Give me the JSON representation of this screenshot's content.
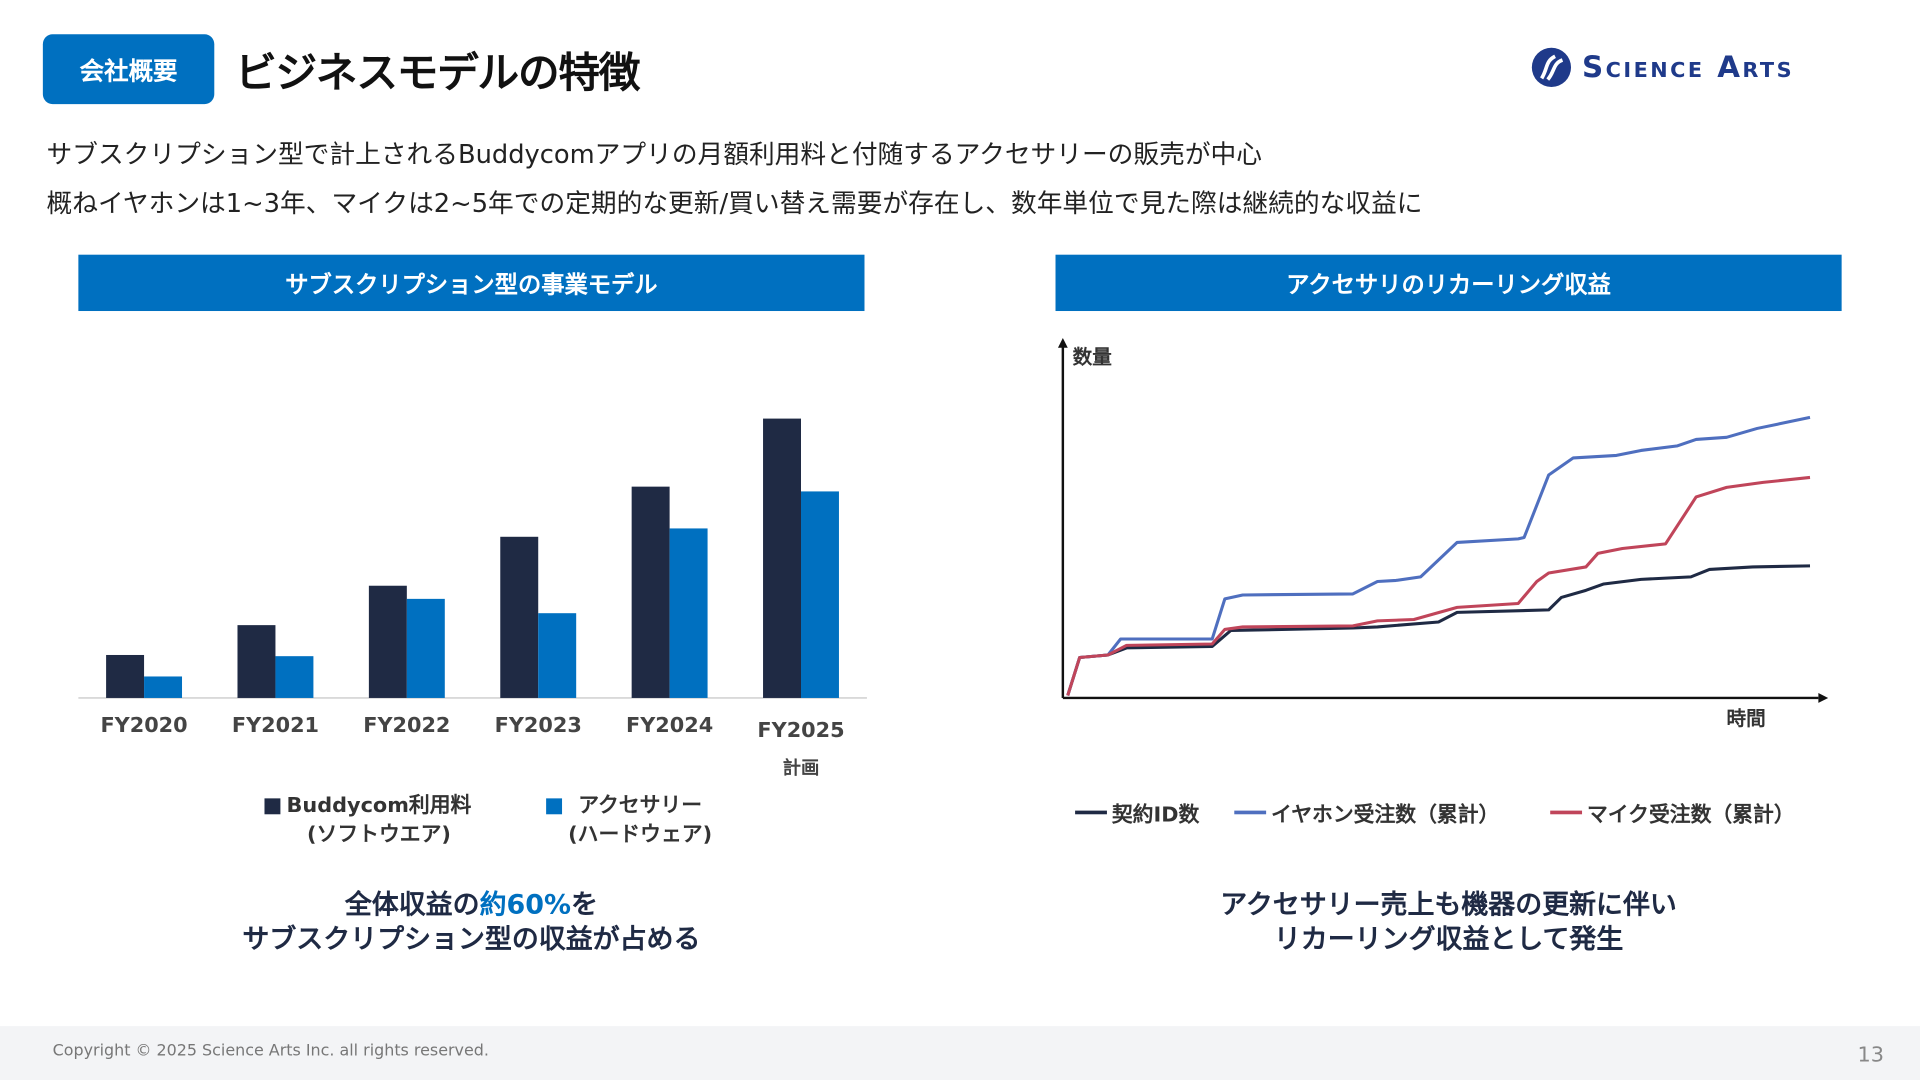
{
  "header": {
    "badge": "会社概要",
    "title": "ビジネスモデルの特徴",
    "logo_text": "Science Arts"
  },
  "lead": [
    "サブスクリプション型で計上されるBuddycomアプリの月額利用料と付随するアクセサリーの販売が中心",
    "概ねイヤホンは1~3年、マイクは2~5年での定期的な更新/買い替え需要が存在し、数年単位で見た際は継続的な収益に"
  ],
  "left_panel": {
    "heading": "サブスクリプション型の事業モデル",
    "conclusion_pre": "全体収益の",
    "conclusion_hl": "約60%",
    "conclusion_post": "を",
    "conclusion_line2": "サブスクリプション型の収益が占める"
  },
  "right_panel": {
    "heading": "アクセサリのリカーリング収益",
    "conclusion_line1": "アクセサリー売上も機器の更新に伴い",
    "conclusion_line2": "リカーリング収益として発生"
  },
  "chart_data": [
    {
      "type": "bar",
      "title": "サブスクリプション型の事業モデル",
      "categories": [
        "FY2020",
        "FY2021",
        "FY2022",
        "FY2023",
        "FY2024",
        "FY2025"
      ],
      "category_sublabels": [
        "",
        "",
        "",
        "",
        "",
        "計画"
      ],
      "series": [
        {
          "name": "Buddycom利用料",
          "name2": "(ソフトウエア)",
          "color": "#1f2a44",
          "values": [
            36,
            61,
            94,
            135,
            177,
            234
          ]
        },
        {
          "name": "アクセサリー",
          "name2": "(ハードウェア)",
          "color": "#0070c0",
          "values": [
            18,
            35,
            83,
            71,
            142,
            173
          ]
        }
      ],
      "ylim": [
        0,
        240
      ],
      "units": "relative (no axis shown)"
    },
    {
      "type": "line",
      "title": "アクセサリのリカーリング収益",
      "xlabel": "時間",
      "ylabel": "数量",
      "xlim": [
        0,
        100
      ],
      "ylim": [
        0,
        100
      ],
      "series": [
        {
          "name": "契約ID数",
          "color": "#1f2a44",
          "points": [
            [
              0,
              0.7
            ],
            [
              1.6,
              11.4
            ],
            [
              5.4,
              12.1
            ],
            [
              7.9,
              14.1
            ],
            [
              19.4,
              14.5
            ],
            [
              21.9,
              19
            ],
            [
              38.3,
              19.7
            ],
            [
              41.6,
              20
            ],
            [
              49.8,
              21.4
            ],
            [
              52.3,
              24.1
            ],
            [
              64.6,
              24.8
            ],
            [
              66.3,
              28.3
            ],
            [
              69.6,
              30.3
            ],
            [
              72,
              32.1
            ],
            [
              77,
              33.4
            ],
            [
              83.7,
              34.1
            ],
            [
              86.2,
              36.2
            ],
            [
              92,
              36.9
            ],
            [
              99.7,
              37.2
            ]
          ]
        },
        {
          "name": "イヤホン受注数（累計）",
          "color": "#4f6fbf",
          "points": [
            [
              0,
              0.7
            ],
            [
              1.6,
              11.4
            ],
            [
              5.4,
              12.1
            ],
            [
              7.1,
              16.6
            ],
            [
              19.4,
              16.6
            ],
            [
              21.1,
              27.9
            ],
            [
              23.5,
              29
            ],
            [
              38.3,
              29.3
            ],
            [
              41.6,
              32.8
            ],
            [
              44.1,
              33.1
            ],
            [
              47.4,
              34.1
            ],
            [
              52.3,
              43.8
            ],
            [
              60.5,
              44.8
            ],
            [
              61.3,
              45.2
            ],
            [
              64.6,
              62.8
            ],
            [
              67.9,
              67.6
            ],
            [
              73.7,
              68.3
            ],
            [
              77,
              69.7
            ],
            [
              81.9,
              71
            ],
            [
              84.4,
              72.8
            ],
            [
              88.5,
              73.4
            ],
            [
              92.6,
              75.9
            ],
            [
              99.7,
              79
            ]
          ]
        },
        {
          "name": "マイク受注数（累計）",
          "color": "#c0455a",
          "points": [
            [
              0,
              0.7
            ],
            [
              1.6,
              11.4
            ],
            [
              5.4,
              12.1
            ],
            [
              7.9,
              14.8
            ],
            [
              19.4,
              15.2
            ],
            [
              21.1,
              19.3
            ],
            [
              23.5,
              20
            ],
            [
              38.3,
              20.3
            ],
            [
              41.6,
              21.7
            ],
            [
              46.5,
              22.1
            ],
            [
              52.3,
              25.5
            ],
            [
              60.5,
              26.6
            ],
            [
              63,
              32.8
            ],
            [
              64.6,
              35.2
            ],
            [
              69.6,
              36.9
            ],
            [
              71.2,
              40.7
            ],
            [
              74.5,
              42.1
            ],
            [
              80.3,
              43.4
            ],
            [
              84.4,
              56.6
            ],
            [
              88.5,
              59.3
            ],
            [
              93.4,
              60.7
            ],
            [
              99.7,
              62.1
            ]
          ]
        }
      ]
    }
  ],
  "footer": {
    "copyright": "Copyright © 2025 Science Arts Inc. all rights reserved.",
    "page": "13"
  }
}
